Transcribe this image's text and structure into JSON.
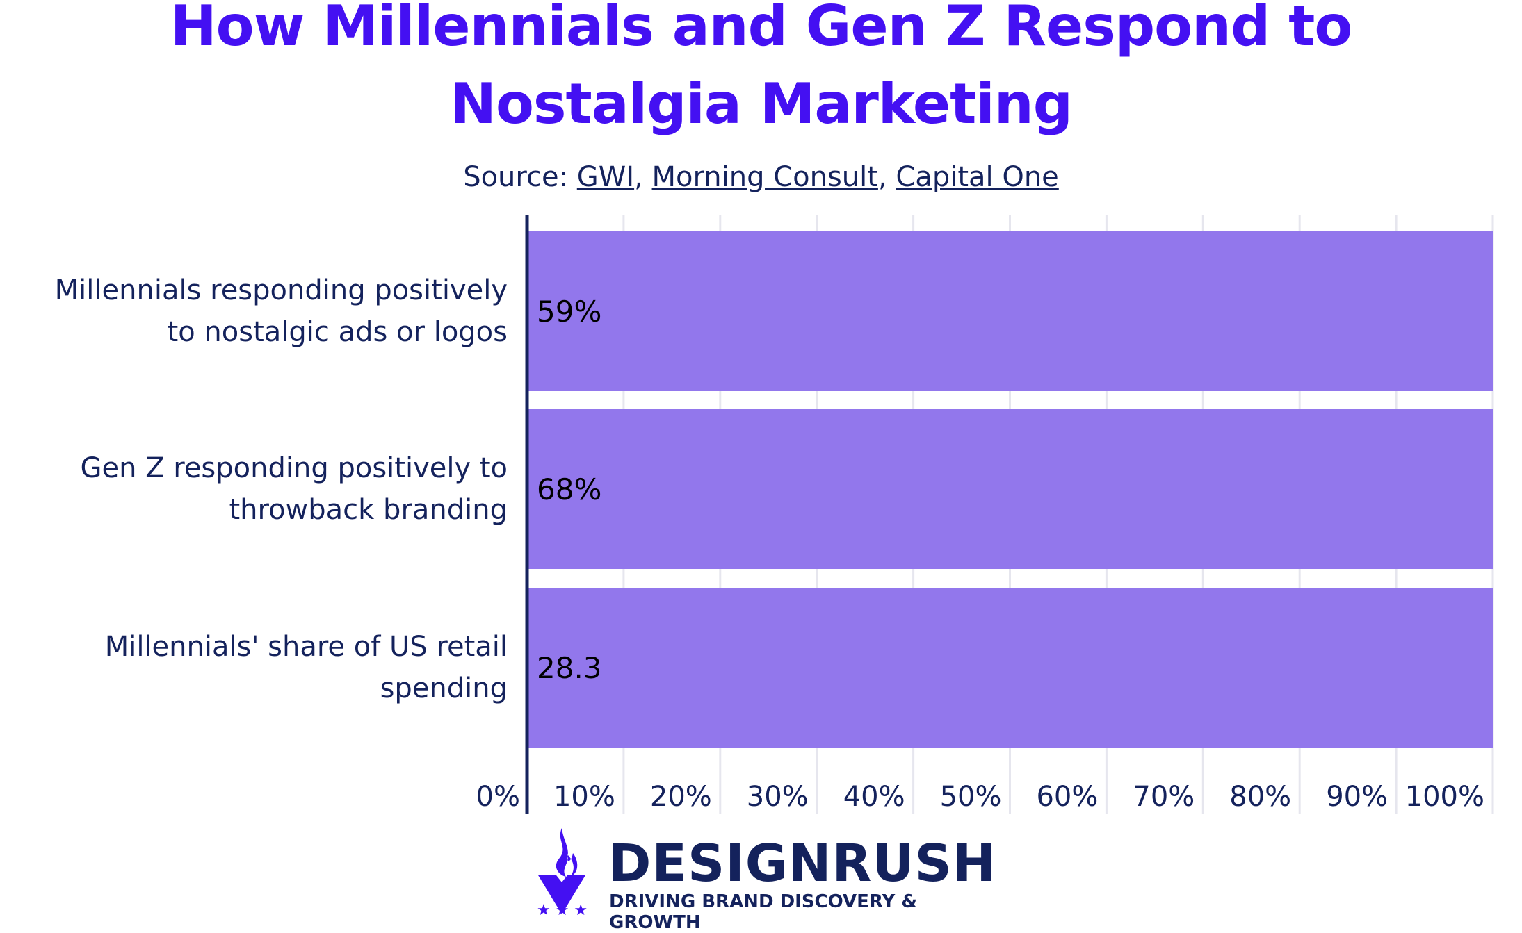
{
  "title_lines": [
    "How Millennials and Gen Z Respond to",
    "Nostalgia Marketing"
  ],
  "source": {
    "prefix": "Source: ",
    "links": [
      "GWI",
      "Morning Consult",
      "Capital One"
    ],
    "separator": ", "
  },
  "chart_data": {
    "type": "bar",
    "orientation": "horizontal",
    "categories": [
      [
        "Millennials responding positively",
        "to nostalgic ads or logos"
      ],
      [
        "Gen Z responding positively to",
        "throwback branding"
      ],
      [
        "Millennials' share of US retail",
        "spending"
      ]
    ],
    "values": [
      59,
      68,
      28.3
    ],
    "data_labels": [
      "59%",
      "68%",
      "28.3"
    ],
    "bar_lengths": [
      100,
      100,
      100
    ],
    "xlim": [
      0,
      100
    ],
    "x_ticks": [
      0,
      10,
      20,
      30,
      40,
      50,
      60,
      70,
      80,
      90,
      100
    ],
    "x_tick_labels": [
      "0%",
      "10%",
      "20%",
      "30%",
      "40%",
      "50%",
      "60%",
      "70%",
      "80%",
      "90%",
      "100%"
    ],
    "grid": true,
    "colors": {
      "bar": "#9277ec",
      "axis": "#14225c",
      "grid": "#e6e6ee",
      "title": "#4410f2",
      "text": "#14225c"
    }
  },
  "logo": {
    "name": "DESIGNRUSH",
    "tagline": "DRIVING BRAND DISCOVERY & GROWTH",
    "icon": "flame-v-icon"
  }
}
